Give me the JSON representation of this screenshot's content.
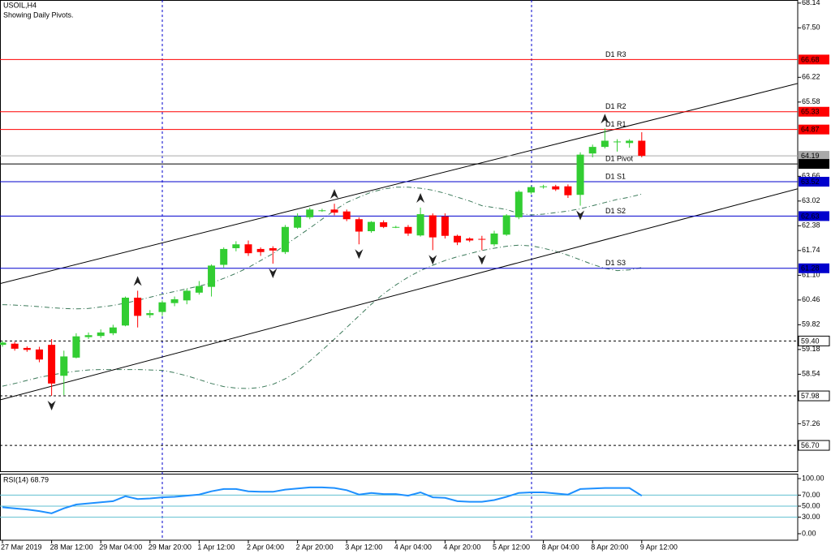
{
  "chart_data": {
    "type": "candlestick",
    "title": "USOIL,H4",
    "subtitle": "Showing Daily Pivots.",
    "categories": [
      "27 Mar 2019",
      null,
      null,
      null,
      "28 Mar 12:00",
      null,
      null,
      null,
      "29 Mar 04:00",
      null,
      null,
      null,
      "29 Mar 20:00",
      null,
      null,
      null,
      "1 Apr 12:00",
      null,
      null,
      null,
      "2 Apr 04:00",
      null,
      null,
      null,
      "2 Apr 20:00",
      null,
      null,
      null,
      "3 Apr 12:00",
      null,
      null,
      null,
      "4 Apr 04:00",
      null,
      null,
      null,
      "4 Apr 20:00",
      null,
      null,
      null,
      "5 Apr 12:00",
      null,
      null,
      null,
      "8 Apr 04:00",
      null,
      null,
      null,
      "8 Apr 20:00",
      null,
      null,
      null,
      "9 Apr 12:00"
    ],
    "open": [
      59.3,
      59.33,
      59.22,
      59.18,
      59.3,
      58.5,
      58.97,
      59.5,
      59.53,
      59.6,
      59.8,
      60.52,
      60.07,
      60.15,
      60.38,
      60.45,
      60.65,
      60.8,
      61.37,
      61.8,
      61.9,
      61.78,
      61.8,
      61.7,
      62.33,
      62.6,
      62.78,
      62.8,
      62.75,
      62.55,
      62.24,
      62.47,
      62.35,
      62.35,
      62.13,
      62.65,
      62.62,
      62.12,
      62.05,
      62.04,
      61.9,
      62.15,
      62.6,
      63.24,
      63.38,
      63.4,
      63.4,
      63.18,
      64.25,
      64.42,
      64.55,
      64.52,
      64.58
    ],
    "high": [
      59.4,
      59.38,
      59.26,
      59.25,
      59.45,
      59.15,
      59.6,
      59.62,
      59.7,
      59.82,
      60.55,
      60.7,
      60.2,
      60.45,
      60.55,
      60.75,
      60.95,
      61.38,
      61.82,
      61.98,
      62.0,
      61.82,
      61.85,
      62.4,
      62.7,
      62.85,
      62.82,
      62.95,
      62.8,
      62.6,
      62.5,
      62.52,
      62.38,
      62.4,
      62.85,
      62.7,
      62.7,
      62.15,
      62.08,
      62.12,
      62.25,
      62.68,
      63.3,
      63.42,
      63.44,
      63.44,
      63.45,
      64.28,
      64.48,
      64.9,
      64.62,
      64.62,
      64.8
    ],
    "low": [
      59.25,
      59.15,
      59.12,
      58.85,
      57.98,
      58.0,
      58.95,
      59.45,
      59.48,
      59.55,
      59.78,
      59.75,
      60.0,
      60.05,
      60.3,
      60.35,
      60.6,
      60.55,
      61.3,
      61.72,
      61.6,
      61.6,
      61.4,
      61.65,
      62.3,
      62.55,
      62.74,
      62.65,
      62.5,
      61.9,
      62.2,
      62.32,
      62.32,
      62.12,
      62.1,
      61.75,
      62.05,
      61.88,
      61.96,
      61.75,
      61.85,
      62.12,
      62.55,
      63.2,
      63.34,
      63.28,
      63.1,
      62.9,
      64.15,
      64.38,
      64.3,
      64.4,
      64.15
    ],
    "close": [
      59.36,
      59.2,
      59.17,
      58.92,
      58.3,
      59.0,
      59.52,
      59.55,
      59.62,
      59.75,
      60.52,
      60.05,
      60.12,
      60.4,
      60.48,
      60.7,
      60.82,
      61.35,
      61.78,
      61.9,
      61.67,
      61.7,
      61.74,
      62.35,
      62.62,
      62.8,
      62.78,
      62.72,
      62.55,
      62.23,
      62.48,
      62.35,
      62.35,
      62.18,
      62.68,
      62.08,
      62.12,
      61.95,
      62.0,
      62.03,
      62.18,
      62.65,
      63.26,
      63.38,
      63.4,
      63.32,
      63.17,
      64.22,
      64.42,
      64.58,
      64.56,
      64.58,
      64.19
    ],
    "up_color": "#32cd32",
    "down_color": "#ff0000",
    "ylim": [
      56.03,
      68.22
    ],
    "yticks": [
      68.14,
      {
        "value": 67.5,
        "label": "67.50"
      },
      66.22,
      65.58,
      63.66,
      63.02,
      62.38,
      61.74,
      {
        "value": 61.1,
        "label": "61.10"
      },
      60.46,
      59.82,
      59.18,
      58.54,
      57.26
    ],
    "bands": {
      "color": "#3c7a5a",
      "upper": [
        60.34,
        60.33,
        60.31,
        60.29,
        60.26,
        60.24,
        60.23,
        60.24,
        60.28,
        60.32,
        60.38,
        60.45,
        60.53,
        60.61,
        60.68,
        60.75,
        60.82,
        60.9,
        61.02,
        61.15,
        61.3,
        61.48,
        61.66,
        61.88,
        62.1,
        62.32,
        62.55,
        62.78,
        62.98,
        63.12,
        63.25,
        63.33,
        63.38,
        63.38,
        63.35,
        63.3,
        63.22,
        63.12,
        63.02,
        62.9,
        62.85,
        62.8,
        62.7,
        62.66,
        62.68,
        62.72,
        62.76,
        62.82,
        62.9,
        62.98,
        63.06,
        63.12,
        63.2
      ],
      "lower": [
        58.23,
        58.3,
        58.38,
        58.46,
        58.52,
        58.58,
        58.62,
        58.65,
        58.66,
        58.66,
        58.66,
        58.66,
        58.65,
        58.64,
        58.58,
        58.5,
        58.4,
        58.3,
        58.22,
        58.18,
        58.17,
        58.2,
        58.28,
        58.42,
        58.62,
        58.88,
        59.16,
        59.45,
        59.75,
        60.05,
        60.35,
        60.62,
        60.85,
        61.05,
        61.22,
        61.36,
        61.48,
        61.58,
        61.66,
        61.74,
        61.8,
        61.85,
        61.88,
        61.86,
        61.8,
        61.72,
        61.62,
        61.5,
        61.38,
        61.28,
        61.22,
        61.24,
        61.3
      ]
    },
    "trendlines": [
      [
        [
          0,
          60.9
        ],
        [
          52,
          65.05
        ]
      ],
      [
        [
          4,
          58.23
        ],
        [
          52,
          62.27
        ]
      ]
    ],
    "fractals_up": [
      {
        "x": 11,
        "value": 60.7
      },
      {
        "x": 27,
        "value": 62.95
      },
      {
        "x": 34,
        "value": 62.85
      },
      {
        "x": 49,
        "value": 64.9
      }
    ],
    "fractals_down": [
      {
        "x": 4,
        "value": 57.98
      },
      {
        "x": 22,
        "value": 61.4
      },
      {
        "x": 29,
        "value": 61.9
      },
      {
        "x": 35,
        "value": 61.75
      },
      {
        "x": 39,
        "value": 61.75
      },
      {
        "x": 47,
        "value": 62.9
      }
    ],
    "levels": [
      {
        "value": 66.68,
        "name": "D1 R3",
        "color": "#ff0000"
      },
      {
        "value": 65.33,
        "name": "D1 R2",
        "color": "#ff0000"
      },
      {
        "value": 64.87,
        "name": "D1 R1",
        "color": "#ff0000"
      },
      {
        "value": 64.19,
        "color": "#a9a9a9"
      },
      {
        "value": 63.98,
        "name": "D1 Pivot",
        "color": "#000000"
      },
      {
        "value": 63.52,
        "name": "D1 S1",
        "color": "#0000cd"
      },
      {
        "value": 62.63,
        "name": "D1 S2",
        "color": "#0000cd"
      },
      {
        "value": 61.28,
        "name": "D1 S3",
        "color": "#0000cd"
      },
      {
        "value": 59.4,
        "label": "59.40",
        "color": "#000000",
        "dashed": true
      },
      {
        "value": 57.98,
        "color": "#000000",
        "dashed": true
      },
      {
        "value": 56.7,
        "label": "56.70",
        "color": "#000000",
        "dashed": true
      }
    ],
    "rsi": {
      "label": "RSI(14) 68.79",
      "color": "#1e90ff",
      "level_color": "#5fbfd0",
      "ylim": [
        -11.8,
        107.4
      ],
      "yticks": [
        {
          "value": 100,
          "label": "100.00"
        },
        {
          "value": 70,
          "label": "70.00"
        },
        {
          "value": 50,
          "label": "50.00"
        },
        {
          "value": 30,
          "label": "30.00"
        },
        {
          "value": 0,
          "label": "0.00"
        }
      ],
      "levels": [
        70,
        50,
        30
      ],
      "values": [
        48,
        46,
        44,
        41,
        37,
        46,
        53,
        55,
        57,
        59,
        68,
        63,
        64,
        66,
        67,
        69,
        71,
        77,
        81,
        81,
        77,
        76,
        76,
        80,
        82,
        84,
        84,
        83,
        79,
        71,
        74,
        72,
        72,
        69,
        75,
        66,
        65,
        59,
        58,
        58,
        61,
        67,
        74,
        75,
        75,
        73,
        71,
        81,
        82,
        83,
        83,
        83,
        68.79
      ]
    }
  }
}
